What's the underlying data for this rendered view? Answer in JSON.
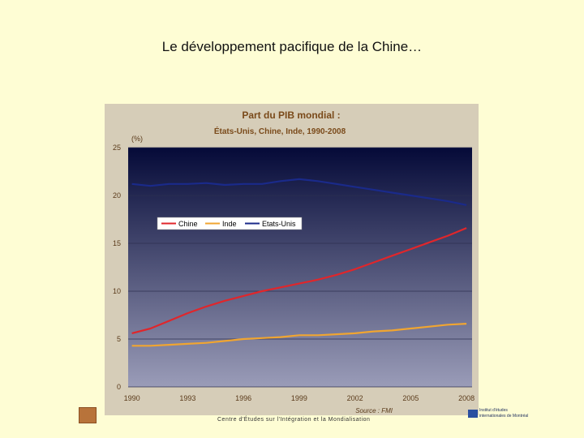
{
  "slide": {
    "title": "Le développement pacifique de la Chine…",
    "footer": "Centre d'Études sur l'Intégration et la Mondialisation",
    "logo_line1": "Institut d'études",
    "logo_line2": "internationales de Montréal"
  },
  "colors": {
    "background": "#fefdd4",
    "plot_top": "#050a38",
    "plot_bottom": "#9a9cb8",
    "chine": "#e0262b",
    "inde": "#f0a531",
    "etats_unis": "#1a2a8a"
  },
  "chart_data": {
    "type": "line",
    "title": "Part du PIB mondial :",
    "subtitle": "États-Unis, Chine, Inde, 1990-2008",
    "ylabel": "(%)",
    "xlabel": "",
    "source": "Source : FMI",
    "x": [
      1990,
      1991,
      1992,
      1993,
      1994,
      1995,
      1996,
      1997,
      1998,
      1999,
      2000,
      2001,
      2002,
      2003,
      2004,
      2005,
      2006,
      2007,
      2008
    ],
    "xticks": [
      "1990",
      "1993",
      "1996",
      "1999",
      "2002",
      "2005",
      "2008"
    ],
    "xtick_values": [
      1990,
      1993,
      1996,
      1999,
      2002,
      2005,
      2008
    ],
    "yticks": [
      "0",
      "5",
      "10",
      "15",
      "20",
      "25"
    ],
    "ytick_values": [
      0,
      5,
      10,
      15,
      20,
      25
    ],
    "xlim": [
      1989.8,
      2008.3
    ],
    "ylim": [
      0,
      25
    ],
    "grid": true,
    "legend_position": "upper-left",
    "series": [
      {
        "name": "Chine",
        "color_key": "chine",
        "values": [
          5.6,
          6.1,
          6.9,
          7.7,
          8.4,
          9.0,
          9.5,
          10.0,
          10.4,
          10.8,
          11.2,
          11.7,
          12.3,
          13.0,
          13.7,
          14.4,
          15.1,
          15.8,
          16.6
        ]
      },
      {
        "name": "Inde",
        "color_key": "inde",
        "values": [
          4.3,
          4.3,
          4.4,
          4.5,
          4.6,
          4.8,
          5.0,
          5.1,
          5.2,
          5.4,
          5.4,
          5.5,
          5.6,
          5.8,
          5.9,
          6.1,
          6.3,
          6.5,
          6.6
        ]
      },
      {
        "name": "Etats-Unis",
        "color_key": "etats_unis",
        "values": [
          21.2,
          21.0,
          21.2,
          21.2,
          21.3,
          21.1,
          21.2,
          21.2,
          21.5,
          21.7,
          21.5,
          21.2,
          20.9,
          20.6,
          20.3,
          20.0,
          19.7,
          19.4,
          19.0
        ]
      }
    ]
  }
}
